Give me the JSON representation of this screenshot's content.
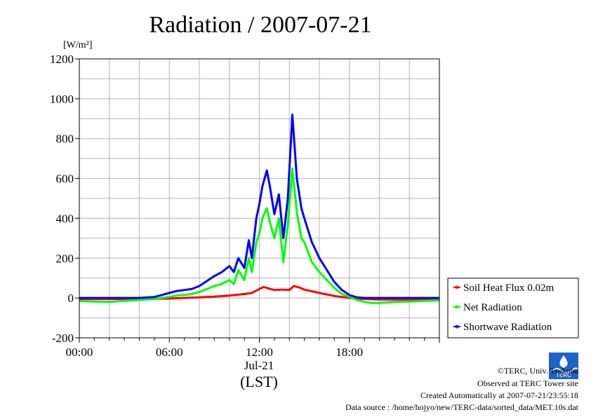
{
  "chart_data": {
    "type": "line",
    "title": "Radiation / 2007-07-21",
    "ylabel_unit": "[W/m²]",
    "ylim": [
      -200,
      1200
    ],
    "yticks": [
      "1200",
      "1000",
      "800",
      "600",
      "400",
      "200",
      "0",
      "-200"
    ],
    "xlim_hours": [
      0,
      24
    ],
    "xticks": [
      {
        "label": "00:00",
        "hour": 0
      },
      {
        "label": "06:00",
        "hour": 6
      },
      {
        "label": "12:00",
        "hour": 12
      },
      {
        "label": "18:00",
        "hour": 18
      }
    ],
    "xsub_label": "Jul-21",
    "xlabel": "(LST)",
    "grid": true,
    "legend_position": "right-bottom",
    "series": [
      {
        "name": "Soil Heat Flux 0.02m",
        "color": "#ff0000",
        "x": [
          0,
          2,
          4,
          6,
          7,
          8,
          9,
          10,
          11,
          11.5,
          12,
          12.3,
          12.6,
          13,
          13.5,
          14,
          14.3,
          14.7,
          15,
          16,
          17,
          18,
          19,
          20,
          22,
          24
        ],
        "y": [
          -5,
          -5,
          -5,
          -3,
          0,
          3,
          7,
          12,
          20,
          25,
          45,
          55,
          48,
          40,
          42,
          40,
          60,
          52,
          42,
          25,
          10,
          0,
          -5,
          -8,
          -8,
          -7
        ]
      },
      {
        "name": "Net Radiation",
        "color": "#00ff00",
        "x": [
          0,
          1,
          2,
          3,
          4,
          5,
          5.5,
          6,
          6.5,
          7,
          7.5,
          8,
          8.5,
          9,
          9.5,
          10,
          10.3,
          10.6,
          11,
          11.3,
          11.5,
          11.8,
          12,
          12.2,
          12.5,
          12.7,
          13,
          13.3,
          13.6,
          13.9,
          14.2,
          14.5,
          14.8,
          15,
          15.5,
          16,
          16.5,
          17,
          17.5,
          18,
          18.5,
          19,
          19.5,
          20,
          21,
          22,
          23,
          24
        ],
        "y": [
          -15,
          -18,
          -20,
          -15,
          -10,
          -5,
          0,
          5,
          12,
          15,
          20,
          30,
          45,
          60,
          70,
          90,
          70,
          140,
          90,
          200,
          130,
          280,
          320,
          400,
          450,
          380,
          300,
          400,
          180,
          370,
          650,
          430,
          300,
          280,
          180,
          130,
          90,
          50,
          20,
          5,
          -10,
          -20,
          -25,
          -25,
          -20,
          -18,
          -15,
          -12
        ]
      },
      {
        "name": "Shortwave Radiation",
        "color": "#0000ff",
        "x": [
          0,
          2,
          4,
          5,
          5.5,
          6,
          6.5,
          7,
          7.5,
          8,
          8.5,
          9,
          9.5,
          10,
          10.3,
          10.6,
          11,
          11.3,
          11.5,
          11.8,
          12,
          12.2,
          12.5,
          12.7,
          13,
          13.3,
          13.6,
          13.9,
          14.2,
          14.5,
          14.8,
          15,
          15.5,
          16,
          16.5,
          17,
          17.5,
          18,
          18.5,
          19,
          20,
          22,
          24
        ],
        "y": [
          0,
          0,
          0,
          5,
          15,
          25,
          35,
          40,
          45,
          60,
          85,
          110,
          130,
          160,
          130,
          200,
          150,
          290,
          200,
          400,
          470,
          560,
          640,
          560,
          420,
          520,
          300,
          500,
          920,
          600,
          450,
          400,
          280,
          200,
          140,
          80,
          40,
          15,
          3,
          0,
          0,
          0,
          0
        ]
      }
    ]
  },
  "footer": {
    "copyright": "©TERC, Univ. Tsukuba",
    "observed": "Observed at TERC Tower site",
    "created": "Created Automatically at 2007-07-21/23:55:18",
    "source": "Data source : /home/hojyo/new/TERC-data/sorted_data/MET.10s.dat"
  }
}
